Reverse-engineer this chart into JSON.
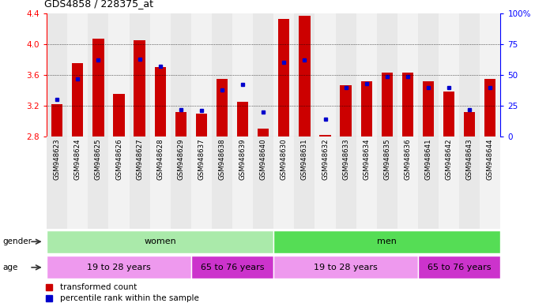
{
  "title": "GDS4858 / 228375_at",
  "samples": [
    "GSM948623",
    "GSM948624",
    "GSM948625",
    "GSM948626",
    "GSM948627",
    "GSM948628",
    "GSM948629",
    "GSM948637",
    "GSM948638",
    "GSM948639",
    "GSM948640",
    "GSM948630",
    "GSM948631",
    "GSM948632",
    "GSM948633",
    "GSM948634",
    "GSM948635",
    "GSM948636",
    "GSM948641",
    "GSM948642",
    "GSM948643",
    "GSM948644"
  ],
  "bar_tops": [
    3.22,
    3.75,
    4.07,
    3.35,
    4.05,
    3.7,
    3.12,
    3.1,
    3.55,
    3.25,
    2.9,
    4.33,
    4.37,
    2.82,
    3.47,
    3.52,
    3.63,
    3.63,
    3.52,
    3.38,
    3.12,
    3.55
  ],
  "blue_pct": [
    30,
    47,
    62,
    -1,
    63,
    57,
    22,
    21,
    38,
    42,
    20,
    60,
    62,
    14,
    40,
    43,
    49,
    49,
    40,
    40,
    22,
    40
  ],
  "ymin": 2.8,
  "ymax": 4.4,
  "bar_color": "#cc0000",
  "blue_color": "#0000cc",
  "gender_row": [
    {
      "label": "women",
      "start": 0,
      "end": 11,
      "color": "#aaeaaa"
    },
    {
      "label": "men",
      "start": 11,
      "end": 22,
      "color": "#55dd55"
    }
  ],
  "age_row": [
    {
      "label": "19 to 28 years",
      "start": 0,
      "end": 7,
      "color": "#ee99ee"
    },
    {
      "label": "65 to 76 years",
      "start": 7,
      "end": 11,
      "color": "#cc33cc"
    },
    {
      "label": "19 to 28 years",
      "start": 11,
      "end": 18,
      "color": "#ee99ee"
    },
    {
      "label": "65 to 76 years",
      "start": 18,
      "end": 22,
      "color": "#cc33cc"
    }
  ],
  "col_bg_even": "#e8e8e8",
  "col_bg_odd": "#f2f2f2"
}
